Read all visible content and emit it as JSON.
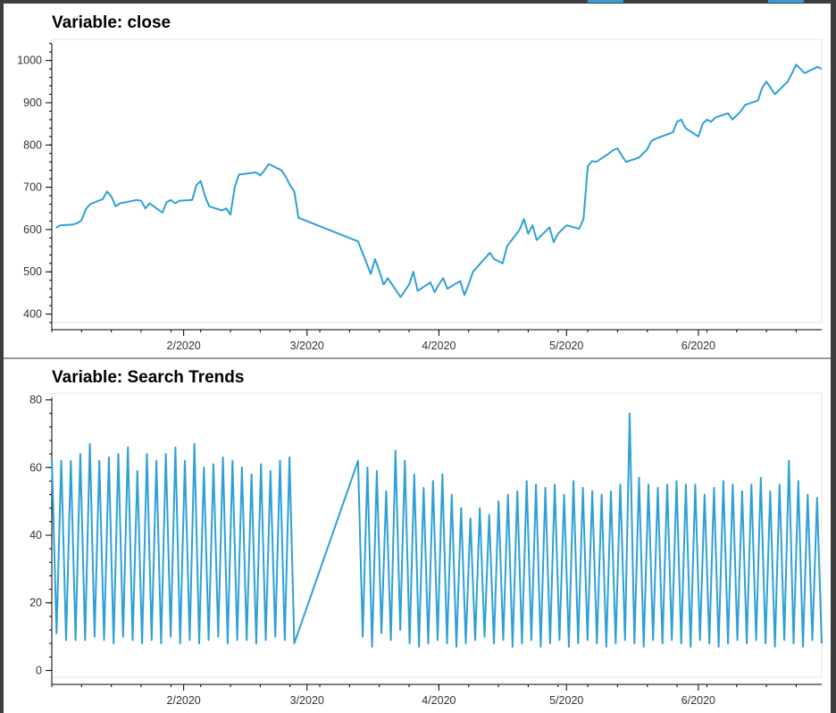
{
  "panels": [
    {
      "title": "Variable: close"
    },
    {
      "title": "Variable: Search Trends"
    }
  ],
  "chart_data": [
    {
      "type": "line",
      "title": "Variable: close",
      "xlabel": "",
      "ylabel": "",
      "x_tick_labels": [
        "2/2020",
        "3/2020",
        "4/2020",
        "5/2020",
        "6/2020"
      ],
      "y_ticks": [
        400,
        500,
        600,
        700,
        800,
        900,
        1000
      ],
      "ylim": [
        380,
        1050
      ],
      "xlim": [
        "2020-01-01",
        "2020-06-30"
      ],
      "color": "#2ea0d6",
      "grid": false,
      "series": [
        {
          "x": [
            "2020-01-02",
            "2020-01-03",
            "2020-01-06",
            "2020-01-07",
            "2020-01-08",
            "2020-01-09",
            "2020-01-10",
            "2020-01-13",
            "2020-01-14",
            "2020-01-15",
            "2020-01-16",
            "2020-01-17",
            "2020-01-21",
            "2020-01-22",
            "2020-01-23",
            "2020-01-24",
            "2020-01-27",
            "2020-01-28",
            "2020-01-29",
            "2020-01-30",
            "2020-01-31",
            "2020-02-03",
            "2020-02-04",
            "2020-02-05",
            "2020-02-06",
            "2020-02-07",
            "2020-02-10",
            "2020-02-11",
            "2020-02-12",
            "2020-02-13",
            "2020-02-14",
            "2020-02-18",
            "2020-02-19",
            "2020-02-20",
            "2020-02-21",
            "2020-02-24",
            "2020-02-25",
            "2020-02-26",
            "2020-02-27",
            "2020-02-28",
            "2020-03-13",
            "2020-03-16",
            "2020-03-17",
            "2020-03-18",
            "2020-03-19",
            "2020-03-20",
            "2020-03-23",
            "2020-03-24",
            "2020-03-25",
            "2020-03-26",
            "2020-03-27",
            "2020-03-30",
            "2020-03-31",
            "2020-04-01",
            "2020-04-02",
            "2020-04-03",
            "2020-04-06",
            "2020-04-07",
            "2020-04-08",
            "2020-04-09",
            "2020-04-13",
            "2020-04-14",
            "2020-04-15",
            "2020-04-16",
            "2020-04-17",
            "2020-04-20",
            "2020-04-21",
            "2020-04-22",
            "2020-04-23",
            "2020-04-24",
            "2020-04-27",
            "2020-04-28",
            "2020-04-29",
            "2020-04-30",
            "2020-05-01",
            "2020-05-04",
            "2020-05-05",
            "2020-05-06",
            "2020-05-07",
            "2020-05-08",
            "2020-05-11",
            "2020-05-12",
            "2020-05-13",
            "2020-05-14",
            "2020-05-15",
            "2020-05-18",
            "2020-05-19",
            "2020-05-20",
            "2020-05-21",
            "2020-05-22",
            "2020-05-26",
            "2020-05-27",
            "2020-05-28",
            "2020-05-29",
            "2020-06-01",
            "2020-06-02",
            "2020-06-03",
            "2020-06-04",
            "2020-06-05",
            "2020-06-08",
            "2020-06-09",
            "2020-06-10",
            "2020-06-11",
            "2020-06-12",
            "2020-06-15",
            "2020-06-16",
            "2020-06-17",
            "2020-06-18",
            "2020-06-19",
            "2020-06-22",
            "2020-06-23",
            "2020-06-24",
            "2020-06-25",
            "2020-06-26",
            "2020-06-29",
            "2020-06-30"
          ],
          "values": [
            604,
            610,
            612,
            615,
            622,
            648,
            660,
            672,
            690,
            678,
            655,
            662,
            670,
            668,
            650,
            662,
            640,
            665,
            670,
            662,
            668,
            670,
            705,
            715,
            680,
            655,
            645,
            650,
            635,
            700,
            730,
            735,
            728,
            740,
            755,
            740,
            725,
            705,
            690,
            628,
            572,
            495,
            530,
            502,
            470,
            485,
            440,
            455,
            470,
            500,
            455,
            475,
            452,
            470,
            485,
            460,
            478,
            445,
            470,
            500,
            545,
            530,
            525,
            520,
            560,
            600,
            625,
            590,
            610,
            575,
            605,
            570,
            590,
            600,
            610,
            602,
            625,
            750,
            762,
            760,
            780,
            788,
            792,
            775,
            760,
            770,
            780,
            790,
            810,
            815,
            830,
            855,
            860,
            840,
            820,
            850,
            860,
            855,
            865,
            875,
            860,
            870,
            880,
            895,
            905,
            935,
            950,
            935,
            920,
            950,
            970,
            990,
            980,
            970,
            985,
            980
          ]
        }
      ]
    },
    {
      "type": "line",
      "title": "Variable: Search Trends",
      "xlabel": "",
      "ylabel": "",
      "x_tick_labels": [
        "2/2020",
        "3/2020",
        "4/2020",
        "5/2020",
        "6/2020"
      ],
      "y_ticks": [
        0,
        20,
        40,
        60,
        80
      ],
      "ylim": [
        -2,
        82
      ],
      "xlim": [
        "2020-01-01",
        "2020-06-30"
      ],
      "color": "#2ea0d6",
      "grid": false,
      "series": [
        {
          "note_x": "hourly values, 2020-01-01 to 2020-06-30",
          "values": [
            63,
            11,
            62,
            9,
            62,
            9,
            64,
            9,
            67,
            10,
            62,
            9,
            63,
            8,
            64,
            10,
            66,
            9,
            59,
            8,
            64,
            9,
            62,
            8,
            64,
            10,
            66,
            8,
            62,
            9,
            67,
            8,
            60,
            9,
            61,
            10,
            63,
            8,
            62,
            9,
            60,
            9,
            58,
            8,
            61,
            9,
            59,
            10,
            62,
            9,
            63,
            8,
            62,
            10,
            60,
            7,
            59,
            11,
            53,
            9,
            65,
            12,
            62,
            8,
            58,
            7,
            54,
            8,
            56,
            9,
            58,
            8,
            52,
            7,
            48,
            8,
            45,
            9,
            48,
            10,
            46,
            8,
            50,
            9,
            52,
            7,
            53,
            8,
            56,
            9,
            55,
            7,
            54,
            8,
            55,
            9,
            52,
            7,
            56,
            8,
            54,
            9,
            53,
            8,
            52,
            7,
            53,
            8,
            55,
            9,
            76,
            8,
            57,
            7,
            55,
            9,
            54,
            8,
            55,
            9,
            56,
            8,
            55,
            7,
            55,
            9,
            52,
            8,
            54,
            7,
            56,
            8,
            55,
            9,
            53,
            8,
            55,
            9,
            57,
            8,
            53,
            7,
            55,
            9,
            62,
            8,
            56,
            7,
            52,
            9,
            51,
            8
          ]
        }
      ]
    }
  ]
}
